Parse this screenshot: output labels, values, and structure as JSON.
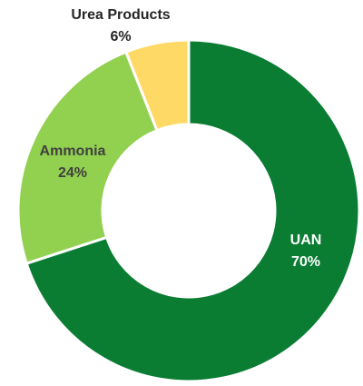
{
  "chart_data": {
    "type": "pie",
    "donut": true,
    "slices": [
      {
        "label": "UAN",
        "value": 70,
        "value_label": "70%",
        "color": "#0a7d33",
        "label_color": "#ffffff"
      },
      {
        "label": "Ammonia",
        "value": 24,
        "value_label": "24%",
        "color": "#92d050",
        "label_color": "#404040"
      },
      {
        "label": "Urea Products",
        "value": 6,
        "value_label": "6%",
        "color": "#ffd966",
        "label_color": "#262626"
      }
    ],
    "start": "12 o'clock",
    "direction": "clockwise",
    "slice_border_color": "#ffffff",
    "legend": "none"
  }
}
